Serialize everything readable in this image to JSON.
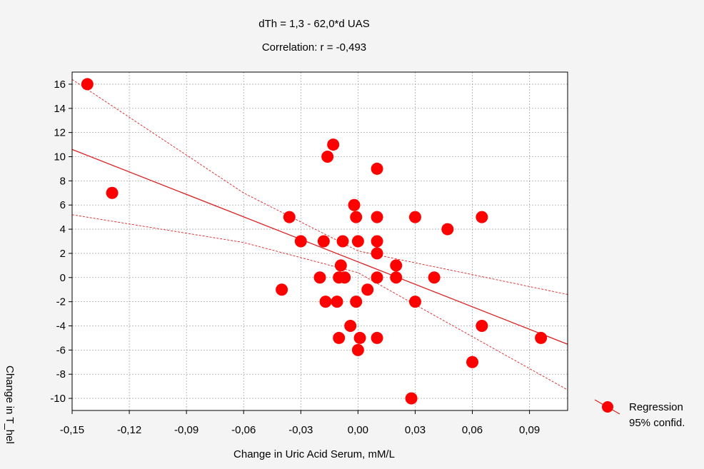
{
  "chart_data": {
    "type": "scatter",
    "title": "dTh = 1,3 - 62,0*d UAS",
    "subtitle": "Correlation: r = -0,493",
    "xlabel": "Change in Uric Acid Serum, mM/L",
    "ylabel": "Change in T_hel",
    "xlim": [
      -0.15,
      0.11
    ],
    "ylim": [
      -11,
      17
    ],
    "xticks": [
      -0.15,
      -0.12,
      -0.09,
      -0.06,
      -0.03,
      0.0,
      0.03,
      0.06,
      0.09
    ],
    "xtick_labels": [
      "-0,15",
      "-0,12",
      "-0,09",
      "-0,06",
      "-0,03",
      "0,00",
      "0,03",
      "0,06",
      "0,09"
    ],
    "yticks": [
      -10,
      -8,
      -6,
      -4,
      -2,
      0,
      2,
      4,
      6,
      8,
      10,
      12,
      14,
      16
    ],
    "ytick_labels": [
      "-10",
      "-8",
      "-6",
      "-4",
      "-2",
      "0",
      "2",
      "4",
      "6",
      "8",
      "10",
      "12",
      "14",
      "16"
    ],
    "grid": true,
    "marker_color": "#ff0000",
    "line_color": "#dd2222",
    "regression": {
      "intercept": 1.3,
      "slope": -62.0
    },
    "ci_lower": [
      [
        -0.15,
        5.2
      ],
      [
        -0.06,
        2.9
      ],
      [
        0.0,
        0.4
      ],
      [
        0.11,
        -9.3
      ]
    ],
    "ci_upper": [
      [
        -0.15,
        16.4
      ],
      [
        -0.06,
        7.0
      ],
      [
        0.0,
        2.2
      ],
      [
        0.11,
        -1.4
      ]
    ],
    "points": [
      {
        "x": -0.142,
        "y": 16
      },
      {
        "x": -0.129,
        "y": 7
      },
      {
        "x": -0.04,
        "y": -1
      },
      {
        "x": -0.036,
        "y": 5
      },
      {
        "x": -0.03,
        "y": 3
      },
      {
        "x": -0.02,
        "y": 0
      },
      {
        "x": -0.018,
        "y": 3
      },
      {
        "x": -0.017,
        "y": -2
      },
      {
        "x": -0.016,
        "y": 10
      },
      {
        "x": -0.013,
        "y": 11
      },
      {
        "x": -0.011,
        "y": -2
      },
      {
        "x": -0.01,
        "y": -5
      },
      {
        "x": -0.01,
        "y": 0
      },
      {
        "x": -0.009,
        "y": 1
      },
      {
        "x": -0.008,
        "y": 3
      },
      {
        "x": -0.007,
        "y": 0
      },
      {
        "x": -0.004,
        "y": -4
      },
      {
        "x": -0.002,
        "y": 6
      },
      {
        "x": -0.001,
        "y": 5
      },
      {
        "x": -0.001,
        "y": -2
      },
      {
        "x": 0.0,
        "y": 3
      },
      {
        "x": 0.0,
        "y": -6
      },
      {
        "x": 0.001,
        "y": -5
      },
      {
        "x": 0.005,
        "y": -1
      },
      {
        "x": 0.01,
        "y": 9
      },
      {
        "x": 0.01,
        "y": 5
      },
      {
        "x": 0.01,
        "y": 3
      },
      {
        "x": 0.01,
        "y": 2
      },
      {
        "x": 0.01,
        "y": 0
      },
      {
        "x": 0.01,
        "y": -5
      },
      {
        "x": 0.02,
        "y": 1
      },
      {
        "x": 0.02,
        "y": 0
      },
      {
        "x": 0.028,
        "y": -10
      },
      {
        "x": 0.03,
        "y": 5
      },
      {
        "x": 0.03,
        "y": -2
      },
      {
        "x": 0.04,
        "y": 0
      },
      {
        "x": 0.047,
        "y": 4
      },
      {
        "x": 0.06,
        "y": -7
      },
      {
        "x": 0.065,
        "y": 5
      },
      {
        "x": 0.065,
        "y": -4
      },
      {
        "x": 0.096,
        "y": -5
      }
    ],
    "legend": {
      "placement": "right",
      "items": [
        "Regression",
        "95% confid."
      ]
    }
  }
}
